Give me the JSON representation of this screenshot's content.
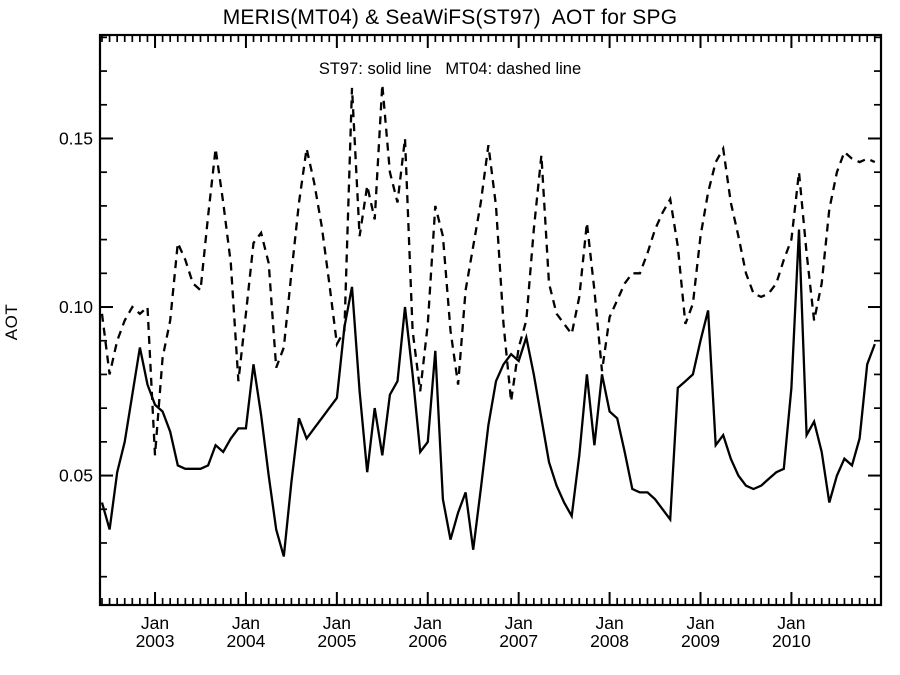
{
  "title": "MERIS(MT04) & SeaWiFS(ST97)  AOT for SPG",
  "legend_note": "ST97: solid line   MT04: dashed line",
  "axes": {
    "ylabel": "AOT",
    "y_tick_labels": [
      "0.05",
      "0.10",
      "0.15"
    ],
    "x_tick_month_label": "Jan",
    "x_tick_years": [
      "2003",
      "2004",
      "2005",
      "2006",
      "2007",
      "2008",
      "2009",
      "2010"
    ]
  },
  "colors": {
    "line": "#000000",
    "background": "#ffffff"
  },
  "chart_data": {
    "type": "line",
    "title": "MERIS(MT04) & SeaWiFS(ST97)  AOT for SPG",
    "xlabel": "",
    "ylabel": "AOT",
    "legend_position": "top-center-text",
    "grid": false,
    "ylim": [
      0.0116,
      0.1807
    ],
    "y_major_ticks": [
      0.05,
      0.1,
      0.15
    ],
    "y_minor_step": 0.01,
    "x_major_tick_month": "01",
    "categories": [
      "2002-06",
      "2002-07",
      "2002-08",
      "2002-09",
      "2002-10",
      "2002-11",
      "2002-12",
      "2003-01",
      "2003-02",
      "2003-03",
      "2003-04",
      "2003-05",
      "2003-06",
      "2003-07",
      "2003-08",
      "2003-09",
      "2003-10",
      "2003-11",
      "2003-12",
      "2004-01",
      "2004-02",
      "2004-03",
      "2004-04",
      "2004-05",
      "2004-06",
      "2004-07",
      "2004-08",
      "2004-09",
      "2004-10",
      "2004-11",
      "2004-12",
      "2005-01",
      "2005-02",
      "2005-03",
      "2005-04",
      "2005-05",
      "2005-06",
      "2005-07",
      "2005-08",
      "2005-09",
      "2005-10",
      "2005-11",
      "2005-12",
      "2006-01",
      "2006-02",
      "2006-03",
      "2006-04",
      "2006-05",
      "2006-06",
      "2006-07",
      "2006-08",
      "2006-09",
      "2006-10",
      "2006-11",
      "2006-12",
      "2007-01",
      "2007-02",
      "2007-03",
      "2007-04",
      "2007-05",
      "2007-06",
      "2007-07",
      "2007-08",
      "2007-09",
      "2007-10",
      "2007-11",
      "2007-12",
      "2008-01",
      "2008-02",
      "2008-03",
      "2008-04",
      "2008-05",
      "2008-06",
      "2008-07",
      "2008-08",
      "2008-09",
      "2008-10",
      "2008-11",
      "2008-12",
      "2009-01",
      "2009-02",
      "2009-03",
      "2009-04",
      "2009-05",
      "2009-06",
      "2009-07",
      "2009-08",
      "2009-09",
      "2009-10",
      "2009-11",
      "2009-12",
      "2010-01",
      "2010-02",
      "2010-03",
      "2010-04",
      "2010-05",
      "2010-06",
      "2010-07",
      "2010-08",
      "2010-09",
      "2010-10",
      "2010-11",
      "2010-12"
    ],
    "series": [
      {
        "name": "ST97",
        "source": "SeaWiFS",
        "line_style": "solid",
        "values": [
          0.042,
          0.034,
          0.051,
          0.06,
          0.074,
          0.088,
          0.077,
          0.071,
          0.069,
          0.063,
          0.053,
          0.052,
          0.052,
          0.052,
          0.053,
          0.059,
          0.057,
          0.061,
          0.064,
          0.064,
          0.083,
          0.068,
          0.05,
          0.034,
          0.026,
          0.048,
          0.067,
          0.061,
          0.064,
          0.067,
          0.07,
          0.073,
          0.094,
          0.106,
          0.075,
          0.051,
          0.07,
          0.056,
          0.074,
          0.078,
          0.1,
          0.08,
          0.057,
          0.06,
          0.087,
          0.043,
          0.031,
          0.039,
          0.045,
          0.028,
          0.046,
          0.065,
          0.078,
          0.083,
          0.086,
          0.084,
          0.091,
          0.08,
          0.067,
          0.054,
          0.047,
          0.042,
          0.038,
          0.056,
          0.08,
          0.059,
          0.08,
          0.069,
          0.067,
          0.057,
          0.046,
          0.045,
          0.045,
          0.043,
          0.04,
          0.037,
          0.076,
          0.078,
          0.08,
          0.09,
          0.099,
          0.059,
          0.062,
          0.055,
          0.05,
          0.047,
          0.046,
          0.047,
          0.049,
          0.051,
          0.052,
          0.076,
          0.123,
          0.062,
          0.066,
          0.057,
          0.042,
          0.05,
          0.055,
          0.053,
          0.061,
          0.083,
          0.089
        ]
      },
      {
        "name": "MT04",
        "source": "MERIS",
        "line_style": "dashed",
        "values": [
          0.098,
          0.08,
          0.09,
          0.096,
          0.1,
          0.098,
          0.1,
          0.056,
          0.085,
          0.096,
          0.119,
          0.114,
          0.107,
          0.105,
          0.127,
          0.147,
          0.131,
          0.113,
          0.078,
          0.098,
          0.119,
          0.122,
          0.113,
          0.082,
          0.088,
          0.11,
          0.131,
          0.147,
          0.137,
          0.124,
          0.107,
          0.089,
          0.093,
          0.165,
          0.121,
          0.136,
          0.126,
          0.166,
          0.14,
          0.131,
          0.15,
          0.093,
          0.075,
          0.095,
          0.13,
          0.121,
          0.093,
          0.077,
          0.105,
          0.118,
          0.131,
          0.148,
          0.13,
          0.095,
          0.072,
          0.088,
          0.096,
          0.123,
          0.145,
          0.107,
          0.098,
          0.095,
          0.092,
          0.103,
          0.125,
          0.105,
          0.081,
          0.097,
          0.102,
          0.107,
          0.11,
          0.11,
          0.116,
          0.123,
          0.128,
          0.132,
          0.118,
          0.095,
          0.101,
          0.121,
          0.134,
          0.143,
          0.147,
          0.131,
          0.121,
          0.11,
          0.104,
          0.103,
          0.104,
          0.107,
          0.114,
          0.12,
          0.14,
          0.116,
          0.096,
          0.107,
          0.129,
          0.14,
          0.146,
          0.144,
          0.143,
          0.144,
          0.143
        ]
      }
    ]
  }
}
